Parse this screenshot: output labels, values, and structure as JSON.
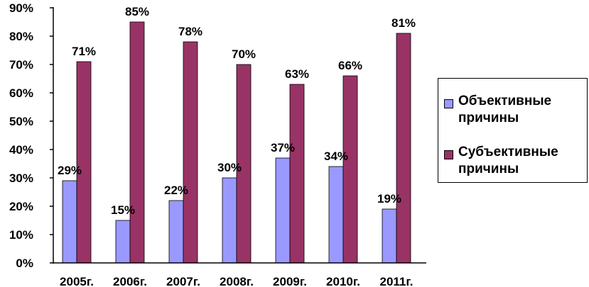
{
  "chart_data": {
    "type": "bar",
    "categories": [
      "2005г.",
      "2006г.",
      "2007г.",
      "2008г.",
      "2009г.",
      "2010г.",
      "2011г."
    ],
    "series": [
      {
        "name": "Объективные причины",
        "values": [
          29,
          15,
          22,
          30,
          37,
          34,
          19
        ],
        "labels": [
          "29%",
          "15%",
          "22%",
          "30%",
          "37%",
          "34%",
          "19%"
        ]
      },
      {
        "name": "Субъективные причины",
        "values": [
          71,
          85,
          78,
          70,
          63,
          66,
          81
        ],
        "labels": [
          "71%",
          "85%",
          "78%",
          "70%",
          "63%",
          "66%",
          "81%"
        ]
      }
    ],
    "ylim": [
      0,
      90
    ],
    "yticks": [
      "0%",
      "10%",
      "20%",
      "30%",
      "40%",
      "50%",
      "60%",
      "70%",
      "80%",
      "90%"
    ],
    "grid": false,
    "legend_position": "right",
    "colors": {
      "objective": "#9999ff",
      "subjective": "#993366"
    }
  }
}
